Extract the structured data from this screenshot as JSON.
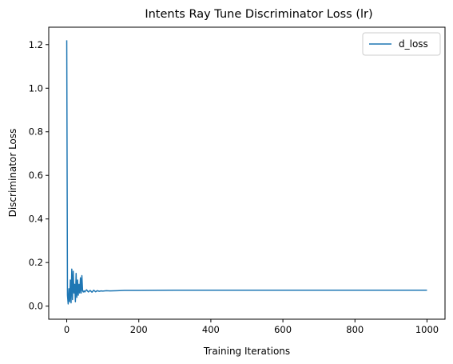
{
  "chart_data": {
    "type": "line",
    "title": "Intents Ray Tune Discriminator Loss (lr)",
    "xlabel": "Training Iterations",
    "ylabel": "Discriminator Loss",
    "xlim": [
      -50,
      1050
    ],
    "ylim": [
      -0.06,
      1.28
    ],
    "xticks": [
      0,
      200,
      400,
      600,
      800,
      1000
    ],
    "xtick_labels": [
      "0",
      "200",
      "400",
      "600",
      "800",
      "1000"
    ],
    "yticks": [
      0.0,
      0.2,
      0.4,
      0.6,
      0.8,
      1.0,
      1.2
    ],
    "ytick_labels": [
      "0.0",
      "0.2",
      "0.4",
      "0.6",
      "0.8",
      "1.0",
      "1.2"
    ],
    "grid": false,
    "legend_position": "top-right",
    "series": [
      {
        "name": "d_loss",
        "color": "#1f77b4",
        "x": [
          0,
          2,
          4,
          6,
          8,
          10,
          12,
          14,
          16,
          18,
          20,
          22,
          24,
          26,
          28,
          30,
          32,
          34,
          36,
          38,
          40,
          42,
          44,
          46,
          48,
          50,
          55,
          60,
          65,
          70,
          75,
          80,
          85,
          90,
          95,
          100,
          110,
          120,
          140,
          160,
          200,
          300,
          400,
          500,
          600,
          700,
          800,
          900,
          1000
        ],
        "y": [
          1.22,
          0.05,
          0.01,
          0.08,
          0.02,
          0.12,
          0.015,
          0.17,
          0.03,
          0.16,
          0.06,
          0.1,
          0.02,
          0.15,
          0.04,
          0.12,
          0.05,
          0.1,
          0.06,
          0.13,
          0.06,
          0.14,
          0.07,
          0.065,
          0.07,
          0.065,
          0.075,
          0.065,
          0.072,
          0.064,
          0.073,
          0.066,
          0.071,
          0.068,
          0.07,
          0.069,
          0.071,
          0.07,
          0.071,
          0.072,
          0.072,
          0.073,
          0.073,
          0.073,
          0.073,
          0.073,
          0.073,
          0.073,
          0.073
        ]
      }
    ]
  }
}
